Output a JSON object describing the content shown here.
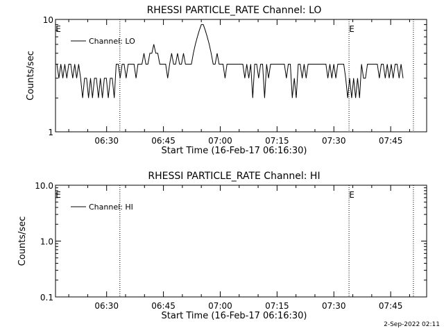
{
  "footer": {
    "timestamp": "2-Sep-2022 02:11"
  },
  "chart_data": [
    {
      "type": "line",
      "title": "RHESSI PARTICLE_RATE Channel: LO",
      "xlabel": "Start Time (16-Feb-17 06:16:30)",
      "ylabel": "Counts/sec",
      "yscale": "log",
      "ylim": [
        1,
        10
      ],
      "xlim": [
        "06:16:30",
        "07:54:30"
      ],
      "x_ticks": [
        "06:30",
        "06:45",
        "07:00",
        "07:15",
        "07:30",
        "07:45"
      ],
      "y_ticks": [
        "1",
        "10"
      ],
      "eclipse_marker": "E",
      "eclipse_lines": [
        "06:33:30",
        "07:34:00",
        "07:51:00"
      ],
      "legend": {
        "position": "top-left",
        "label": "Channel: LO"
      },
      "series": [
        {
          "name": "Channel: LO",
          "values": [
            4,
            3,
            4,
            3,
            4,
            3,
            4,
            4,
            3,
            4,
            3,
            4,
            3,
            2,
            3,
            3,
            2,
            3,
            2,
            3,
            3,
            2,
            3,
            2,
            3,
            3,
            2,
            3,
            3,
            2,
            4,
            4,
            3,
            4,
            4,
            3,
            4,
            4,
            4,
            4,
            3,
            4,
            4,
            4,
            5,
            4,
            4,
            5,
            5,
            6,
            5,
            5,
            4,
            4,
            4,
            4,
            3,
            4,
            5,
            4,
            4,
            5,
            4,
            4,
            5,
            4,
            4,
            4,
            4,
            5,
            6,
            7,
            8,
            9,
            9,
            8,
            7,
            6,
            5,
            4,
            4,
            5,
            4,
            4,
            4,
            3,
            4,
            4,
            4,
            4,
            4,
            4,
            4,
            4,
            4,
            3,
            4,
            3,
            4,
            2,
            4,
            4,
            3,
            4,
            4,
            2,
            4,
            3,
            4,
            4,
            4,
            4,
            4,
            4,
            4,
            4,
            3,
            4,
            4,
            2,
            3,
            2,
            4,
            4,
            3,
            4,
            3,
            4,
            4,
            4,
            4,
            4,
            4,
            4,
            4,
            4,
            4,
            3,
            4,
            3,
            4,
            3,
            4,
            4,
            4,
            4,
            3,
            2,
            3,
            2,
            3,
            2,
            3,
            2,
            4,
            3,
            3,
            4,
            4,
            4,
            4,
            4,
            4,
            3,
            4,
            4,
            3,
            4,
            3,
            4,
            3,
            4,
            4,
            3,
            4,
            3
          ]
        }
      ]
    },
    {
      "type": "line",
      "title": "RHESSI PARTICLE_RATE Channel: HI",
      "xlabel": "Start Time (16-Feb-17 06:16:30)",
      "ylabel": "Counts/sec",
      "yscale": "log",
      "ylim": [
        0.1,
        10.0
      ],
      "xlim": [
        "06:16:30",
        "07:54:30"
      ],
      "x_ticks": [
        "06:30",
        "06:45",
        "07:00",
        "07:15",
        "07:30",
        "07:45"
      ],
      "y_ticks": [
        "0.1",
        "1.0",
        "10.0"
      ],
      "eclipse_marker": "E",
      "eclipse_lines": [
        "06:33:30",
        "07:34:00",
        "07:51:00"
      ],
      "legend": {
        "position": "top-left",
        "label": "Channel: HI"
      },
      "series": [
        {
          "name": "Channel: HI",
          "values": []
        }
      ]
    }
  ]
}
